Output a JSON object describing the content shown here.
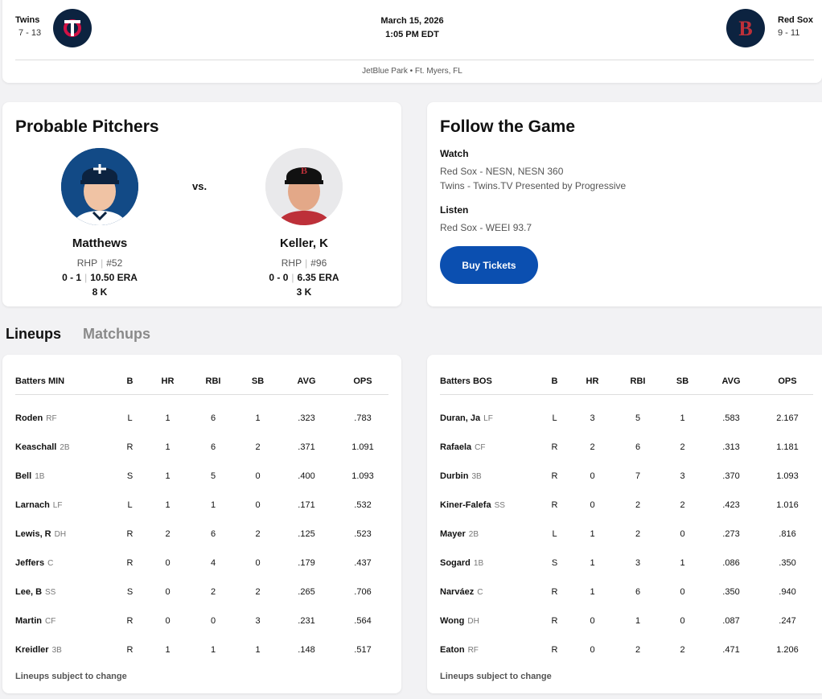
{
  "game": {
    "away": {
      "name": "Twins",
      "record": "7 - 13",
      "logo_icon": "twins-logo-icon"
    },
    "home": {
      "name": "Red Sox",
      "record": "9 - 11",
      "logo_icon": "red-sox-logo-icon"
    },
    "date": "March 15, 2026",
    "time": "1:05 PM EDT",
    "venue": "JetBlue Park • Ft. Myers, FL"
  },
  "pitchers": {
    "title": "Probable Pitchers",
    "vs": "vs.",
    "away": {
      "name": "Matthews",
      "throws": "RHP",
      "number": "#52",
      "record": "0 - 1",
      "era": "10.50 ERA",
      "k": "8 K"
    },
    "home": {
      "name": "Keller, K",
      "throws": "RHP",
      "number": "#96",
      "record": "0 - 0",
      "era": "6.35 ERA",
      "k": "3 K"
    }
  },
  "follow": {
    "title": "Follow the Game",
    "watch_label": "Watch",
    "watch": [
      "Red Sox - NESN, NESN 360",
      "Twins - Twins.TV Presented by Progressive"
    ],
    "listen_label": "Listen",
    "listen": [
      "Red Sox - WEEI 93.7"
    ],
    "button": "Buy Tickets"
  },
  "tabs": [
    {
      "label": "Lineups",
      "active": true
    },
    {
      "label": "Matchups",
      "active": false
    }
  ],
  "lineups": {
    "columns": [
      "B",
      "HR",
      "RBI",
      "SB",
      "AVG",
      "OPS"
    ],
    "note": "Lineups subject to change",
    "min": {
      "header": "Batters MIN",
      "rows": [
        {
          "name": "Roden",
          "pos": "RF",
          "b": "L",
          "hr": "1",
          "rbi": "6",
          "sb": "1",
          "avg": ".323",
          "ops": ".783"
        },
        {
          "name": "Keaschall",
          "pos": "2B",
          "b": "R",
          "hr": "1",
          "rbi": "6",
          "sb": "2",
          "avg": ".371",
          "ops": "1.091"
        },
        {
          "name": "Bell",
          "pos": "1B",
          "b": "S",
          "hr": "1",
          "rbi": "5",
          "sb": "0",
          "avg": ".400",
          "ops": "1.093"
        },
        {
          "name": "Larnach",
          "pos": "LF",
          "b": "L",
          "hr": "1",
          "rbi": "1",
          "sb": "0",
          "avg": ".171",
          "ops": ".532"
        },
        {
          "name": "Lewis, R",
          "pos": "DH",
          "b": "R",
          "hr": "2",
          "rbi": "6",
          "sb": "2",
          "avg": ".125",
          "ops": ".523"
        },
        {
          "name": "Jeffers",
          "pos": "C",
          "b": "R",
          "hr": "0",
          "rbi": "4",
          "sb": "0",
          "avg": ".179",
          "ops": ".437"
        },
        {
          "name": "Lee, B",
          "pos": "SS",
          "b": "S",
          "hr": "0",
          "rbi": "2",
          "sb": "2",
          "avg": ".265",
          "ops": ".706"
        },
        {
          "name": "Martin",
          "pos": "CF",
          "b": "R",
          "hr": "0",
          "rbi": "0",
          "sb": "3",
          "avg": ".231",
          "ops": ".564"
        },
        {
          "name": "Kreidler",
          "pos": "3B",
          "b": "R",
          "hr": "1",
          "rbi": "1",
          "sb": "1",
          "avg": ".148",
          "ops": ".517"
        }
      ]
    },
    "bos": {
      "header": "Batters BOS",
      "rows": [
        {
          "name": "Duran, Ja",
          "pos": "LF",
          "b": "L",
          "hr": "3",
          "rbi": "5",
          "sb": "1",
          "avg": ".583",
          "ops": "2.167"
        },
        {
          "name": "Rafaela",
          "pos": "CF",
          "b": "R",
          "hr": "2",
          "rbi": "6",
          "sb": "2",
          "avg": ".313",
          "ops": "1.181"
        },
        {
          "name": "Durbin",
          "pos": "3B",
          "b": "R",
          "hr": "0",
          "rbi": "7",
          "sb": "3",
          "avg": ".370",
          "ops": "1.093"
        },
        {
          "name": "Kiner-Falefa",
          "pos": "SS",
          "b": "R",
          "hr": "0",
          "rbi": "2",
          "sb": "2",
          "avg": ".423",
          "ops": "1.016"
        },
        {
          "name": "Mayer",
          "pos": "2B",
          "b": "L",
          "hr": "1",
          "rbi": "2",
          "sb": "0",
          "avg": ".273",
          "ops": ".816"
        },
        {
          "name": "Sogard",
          "pos": "1B",
          "b": "S",
          "hr": "1",
          "rbi": "3",
          "sb": "1",
          "avg": ".086",
          "ops": ".350"
        },
        {
          "name": "Narváez",
          "pos": "C",
          "b": "R",
          "hr": "1",
          "rbi": "6",
          "sb": "0",
          "avg": ".350",
          "ops": ".940"
        },
        {
          "name": "Wong",
          "pos": "DH",
          "b": "R",
          "hr": "0",
          "rbi": "1",
          "sb": "0",
          "avg": ".087",
          "ops": ".247"
        },
        {
          "name": "Eaton",
          "pos": "RF",
          "b": "R",
          "hr": "0",
          "rbi": "2",
          "sb": "2",
          "avg": ".471",
          "ops": "1.206"
        }
      ]
    }
  },
  "colors": {
    "twins_navy": "#0c2340",
    "twins_red": "#d31145",
    "redsox_red": "#bd3039",
    "button_blue": "#0b4fb0"
  }
}
